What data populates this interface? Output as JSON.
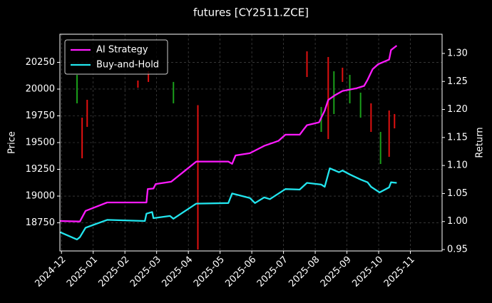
{
  "chart_data": {
    "type": "candlestick_line",
    "title": "futures [CY2511.ZCE]",
    "y_label": "Price",
    "y2_label": "Return",
    "xlim": [
      -0.05,
      12.0
    ],
    "xticks": [
      {
        "value": 0,
        "label": "2024-12"
      },
      {
        "value": 1,
        "label": "2025-01"
      },
      {
        "value": 2,
        "label": "2025-02"
      },
      {
        "value": 3,
        "label": "2025-03"
      },
      {
        "value": 4,
        "label": "2025-04"
      },
      {
        "value": 5,
        "label": "2025-05"
      },
      {
        "value": 6,
        "label": "2025-06"
      },
      {
        "value": 7,
        "label": "2025-07"
      },
      {
        "value": 8,
        "label": "2025-08"
      },
      {
        "value": 9,
        "label": "2025-09"
      },
      {
        "value": 10,
        "label": "2025-10"
      },
      {
        "value": 11,
        "label": "2025-11"
      }
    ],
    "ylim": [
      18487,
      20513
    ],
    "yticks": [
      18750,
      19000,
      19250,
      19500,
      19750,
      20000,
      20250
    ],
    "y2lim": [
      0.9475,
      1.3343
    ],
    "y2ticks": [
      0.95,
      {
        "value": 1.0,
        "label": "1.00"
      },
      1.05,
      {
        "value": 1.1,
        "label": "1.10"
      },
      1.15,
      {
        "value": 1.2,
        "label": "1.20"
      },
      1.25,
      {
        "value": 1.3,
        "label": "1.30"
      }
    ],
    "grid": true,
    "legend": "upper left",
    "candles": {
      "up_color": "#1a9e1a",
      "down_color": "#e01010",
      "x": [
        0.49,
        0.65,
        0.81,
        2.41,
        2.74,
        3.53,
        4.3,
        7.74,
        8.19,
        8.41,
        8.59,
        8.86,
        9.09,
        9.43,
        9.76,
        10.06,
        10.33,
        10.5
      ],
      "open": [
        19867,
        19733,
        19900,
        20080,
        20167,
        19867,
        19850,
        20353,
        19600,
        20300,
        19767,
        20200,
        19867,
        19733,
        19867,
        19300,
        19800,
        19767
      ],
      "close": [
        20133,
        19353,
        19647,
        20013,
        20067,
        20067,
        18500,
        20113,
        19833,
        19533,
        20167,
        20067,
        20133,
        19967,
        19600,
        19600,
        19367,
        19633
      ]
    },
    "series": [
      {
        "name": "AI Strategy",
        "color": "#ff1aff",
        "axis": "y2",
        "x": [
          -0.04,
          0.58,
          0.76,
          1.44,
          2.68,
          2.72,
          2.9,
          2.97,
          3.46,
          4.25,
          5.26,
          5.38,
          5.49,
          5.94,
          6.39,
          6.84,
          7.06,
          7.51,
          7.63,
          7.74,
          8.12,
          8.3,
          8.41,
          8.64,
          8.86,
          9.31,
          9.54,
          9.65,
          9.81,
          9.99,
          10.33,
          10.39,
          10.57
        ],
        "values": [
          1.001,
          1.0,
          1.019,
          1.034,
          1.034,
          1.058,
          1.059,
          1.067,
          1.071,
          1.107,
          1.107,
          1.103,
          1.118,
          1.122,
          1.135,
          1.144,
          1.155,
          1.155,
          1.164,
          1.172,
          1.177,
          1.198,
          1.217,
          1.226,
          1.233,
          1.238,
          1.242,
          1.253,
          1.272,
          1.281,
          1.289,
          1.306,
          1.314
        ]
      },
      {
        "name": "Buy-and-Hold",
        "color": "#22e5ee",
        "axis": "y2",
        "x": [
          -0.04,
          0.49,
          0.58,
          0.76,
          1.44,
          2.63,
          2.68,
          2.86,
          2.9,
          3.42,
          3.53,
          4.25,
          5.26,
          5.38,
          5.94,
          6.1,
          6.39,
          6.57,
          7.06,
          7.51,
          7.74,
          8.19,
          8.3,
          8.46,
          8.75,
          8.86,
          9.09,
          9.43,
          9.65,
          9.76,
          10.03,
          10.33,
          10.39,
          10.57
        ],
        "values": [
          0.981,
          0.968,
          0.972,
          0.989,
          1.003,
          1.001,
          1.014,
          1.017,
          1.006,
          1.01,
          1.005,
          1.032,
          1.033,
          1.05,
          1.042,
          1.033,
          1.043,
          1.04,
          1.058,
          1.057,
          1.069,
          1.066,
          1.062,
          1.095,
          1.088,
          1.091,
          1.084,
          1.075,
          1.07,
          1.062,
          1.052,
          1.061,
          1.07,
          1.069
        ]
      }
    ]
  }
}
